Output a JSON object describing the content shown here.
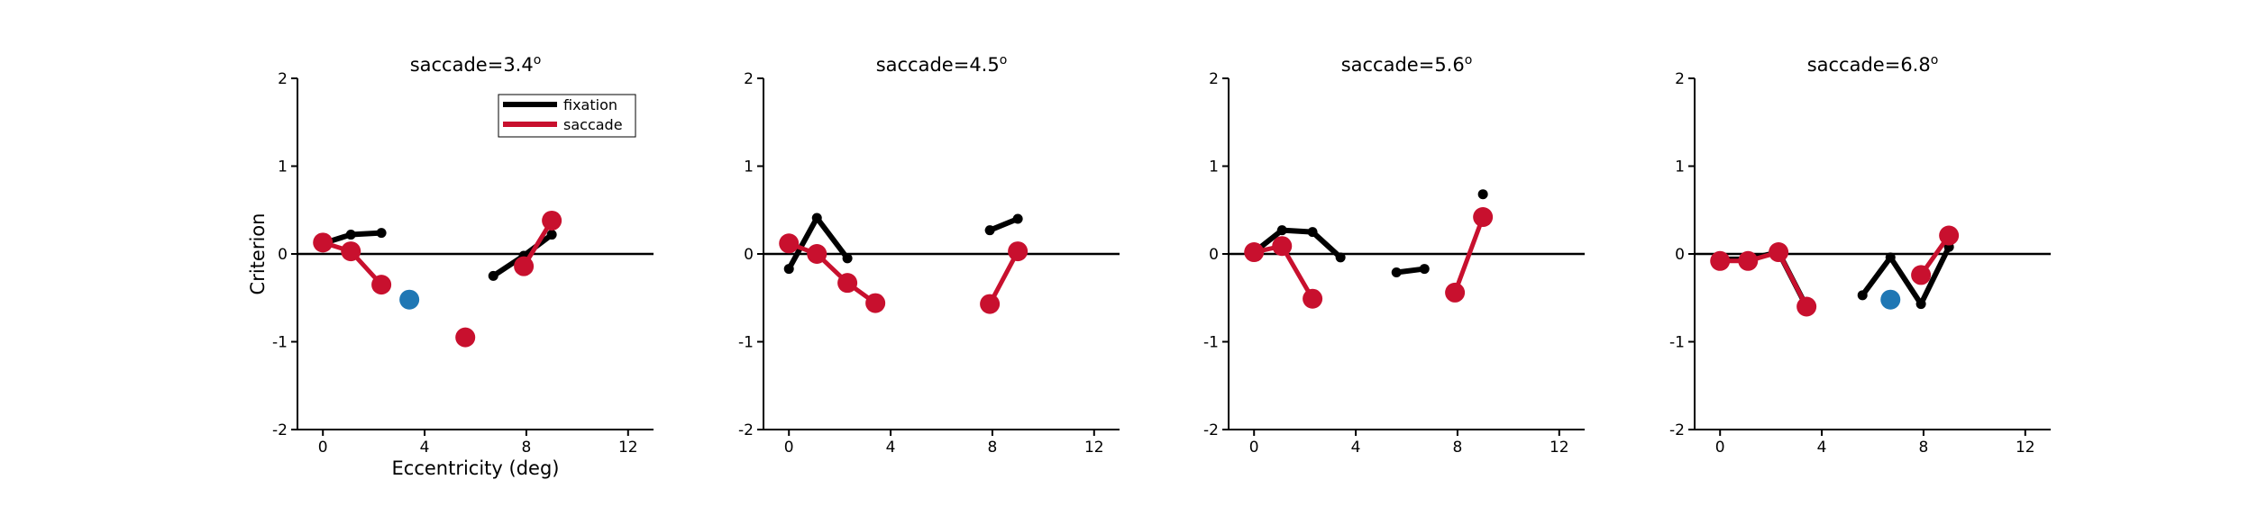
{
  "chart_data": [
    {
      "type": "line",
      "title": "saccade=3.4",
      "title_superscript": "o",
      "xlabel": "Eccentricity (deg)",
      "ylabel": "Criterion",
      "xlim": [
        -1,
        13
      ],
      "ylim": [
        -2,
        2
      ],
      "xticks": [
        "0",
        "4",
        "8",
        "12"
      ],
      "yticks": [
        "2",
        "1",
        "0",
        "-1",
        "-2"
      ],
      "reference_line_y": 0,
      "legend": {
        "placement": "top-right",
        "entries": [
          "fixation",
          "saccade"
        ]
      },
      "series": [
        {
          "name": "fixation",
          "color": "#000000",
          "segments": [
            [
              [
                0,
                0.12
              ],
              [
                1.1,
                0.22
              ],
              [
                2.3,
                0.24
              ]
            ],
            [
              [
                6.7,
                -0.25
              ],
              [
                7.9,
                -0.02
              ],
              [
                9.0,
                0.22
              ]
            ]
          ]
        },
        {
          "name": "saccade",
          "color": "#c8102e",
          "segments": [
            [
              [
                0,
                0.13
              ],
              [
                1.1,
                0.03
              ],
              [
                2.3,
                -0.35
              ]
            ],
            [
              [
                5.6,
                -0.95
              ]
            ],
            [
              [
                7.9,
                -0.14
              ],
              [
                9.0,
                0.38
              ]
            ]
          ]
        }
      ],
      "highlight_points": [
        {
          "x": 3.4,
          "y": -0.52,
          "color": "#1f77b4"
        }
      ]
    },
    {
      "type": "line",
      "title": "saccade=4.5",
      "title_superscript": "o",
      "xlim": [
        -1,
        13
      ],
      "ylim": [
        -2,
        2
      ],
      "xticks": [
        "0",
        "4",
        "8",
        "12"
      ],
      "yticks": [
        "2",
        "1",
        "0",
        "-1",
        "-2"
      ],
      "reference_line_y": 0,
      "series": [
        {
          "name": "fixation",
          "color": "#000000",
          "segments": [
            [
              [
                0,
                -0.17
              ],
              [
                1.1,
                0.41
              ],
              [
                2.3,
                -0.05
              ]
            ],
            [
              [
                7.9,
                0.27
              ],
              [
                9.0,
                0.4
              ]
            ]
          ]
        },
        {
          "name": "saccade",
          "color": "#c8102e",
          "segments": [
            [
              [
                0,
                0.12
              ],
              [
                1.1,
                0.0
              ],
              [
                2.3,
                -0.33
              ],
              [
                3.4,
                -0.56
              ]
            ],
            [
              [
                7.9,
                -0.57
              ],
              [
                9.0,
                0.03
              ]
            ]
          ]
        }
      ],
      "highlight_points": []
    },
    {
      "type": "line",
      "title": "saccade=5.6",
      "title_superscript": "o",
      "xlim": [
        -1,
        13
      ],
      "ylim": [
        -2,
        2
      ],
      "xticks": [
        "0",
        "4",
        "8",
        "12"
      ],
      "yticks": [
        "2",
        "1",
        "0",
        "-1",
        "-2"
      ],
      "reference_line_y": 0,
      "series": [
        {
          "name": "fixation",
          "color": "#000000",
          "segments": [
            [
              [
                0,
                0.02
              ],
              [
                1.1,
                0.27
              ],
              [
                2.3,
                0.25
              ],
              [
                3.4,
                -0.04
              ]
            ],
            [
              [
                5.6,
                -0.21
              ],
              [
                6.7,
                -0.17
              ]
            ],
            [
              [
                9.0,
                0.68
              ]
            ]
          ]
        },
        {
          "name": "saccade",
          "color": "#c8102e",
          "segments": [
            [
              [
                0,
                0.02
              ],
              [
                1.1,
                0.09
              ],
              [
                2.3,
                -0.51
              ]
            ],
            [
              [
                7.9,
                -0.44
              ],
              [
                9.0,
                0.42
              ]
            ]
          ]
        }
      ],
      "highlight_points": []
    },
    {
      "type": "line",
      "title": "saccade=6.8",
      "title_superscript": "o",
      "xlim": [
        -1,
        13
      ],
      "ylim": [
        -2,
        2
      ],
      "xticks": [
        "0",
        "4",
        "8",
        "12"
      ],
      "yticks": [
        "2",
        "1",
        "0",
        "-1",
        "-2"
      ],
      "reference_line_y": 0,
      "series": [
        {
          "name": "fixation",
          "color": "#000000",
          "segments": [
            [
              [
                0,
                -0.06
              ],
              [
                1.1,
                -0.06
              ],
              [
                2.3,
                0.02
              ],
              [
                3.4,
                -0.6
              ]
            ],
            [
              [
                5.6,
                -0.47
              ],
              [
                6.7,
                -0.04
              ],
              [
                7.9,
                -0.57
              ],
              [
                9.0,
                0.08
              ]
            ]
          ]
        },
        {
          "name": "saccade",
          "color": "#c8102e",
          "segments": [
            [
              [
                0,
                -0.08
              ],
              [
                1.1,
                -0.08
              ],
              [
                2.3,
                0.02
              ],
              [
                3.4,
                -0.6
              ]
            ],
            [
              [
                7.9,
                -0.24
              ],
              [
                9.0,
                0.21
              ]
            ]
          ]
        }
      ],
      "highlight_points": [
        {
          "x": 6.7,
          "y": -0.52,
          "color": "#1f77b4"
        }
      ]
    }
  ]
}
